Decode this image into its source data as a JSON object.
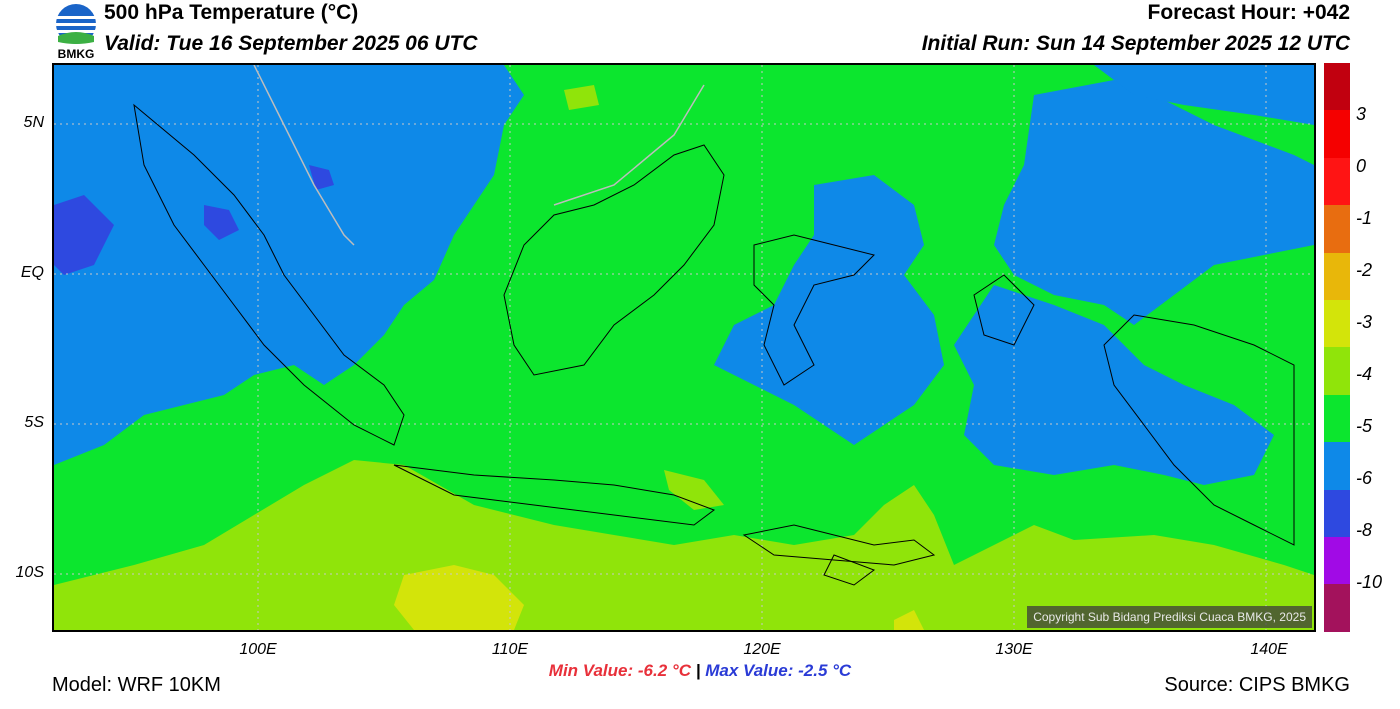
{
  "header": {
    "title": "500 hPa Temperature (°C)",
    "valid": "Valid: Tue 16 September 2025 06 UTC",
    "forecast_hour": "Forecast Hour: +042",
    "initial_run": "Initial Run: Sun 14 September 2025 12 UTC"
  },
  "logo": {
    "text": "BMKG"
  },
  "map": {
    "copyright": "Copyright Sub Bidang Prediksi Cuaca BMKG, 2025",
    "lat_labels": [
      "5N",
      "EQ",
      "5S",
      "10S"
    ],
    "lon_labels": [
      "100E",
      "110E",
      "120E",
      "130E",
      "140E"
    ]
  },
  "colorbar": {
    "labels": [
      "3",
      "0",
      "-1",
      "-2",
      "-3",
      "-4",
      "-5",
      "-6",
      "-8",
      "-10"
    ],
    "colors": [
      "#c1000f",
      "#f50000",
      "#ff1414",
      "#e86d10",
      "#e8b70a",
      "#d3e40a",
      "#90e40a",
      "#0ce62e",
      "#0e89e8",
      "#2e49e0",
      "#a10ae6",
      "#a3125c"
    ]
  },
  "stats": {
    "min": "Min Value: -6.2 °C",
    "separator": "|",
    "max": "Max Value: -2.5 °C"
  },
  "footer": {
    "model": "Model: WRF 10KM",
    "source": "Source: CIPS BMKG"
  }
}
